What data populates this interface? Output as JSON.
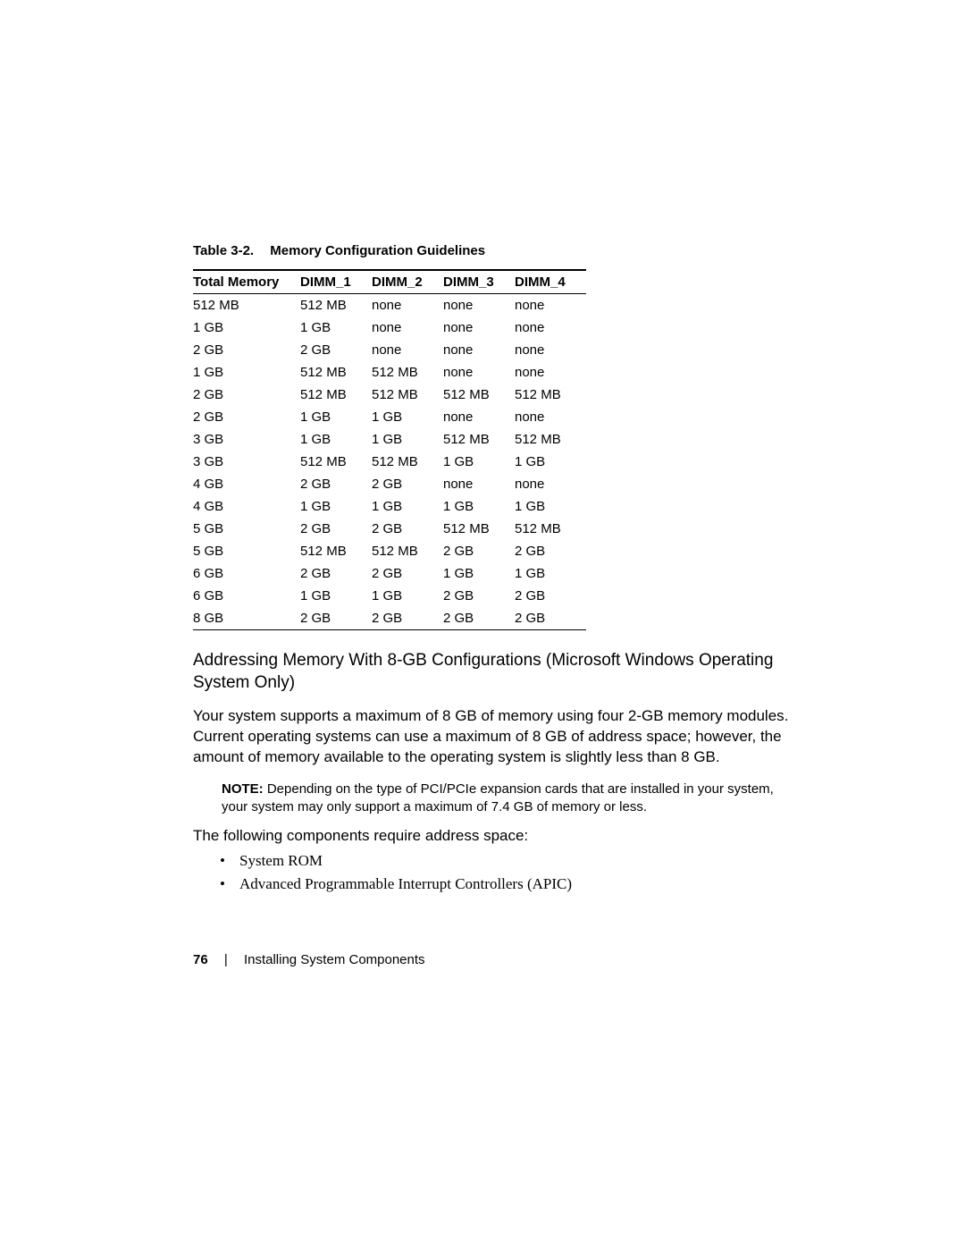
{
  "table": {
    "caption_label": "Table 3-2.",
    "caption_title": "Memory Configuration Guidelines",
    "columns": [
      "Total Memory",
      "DIMM_1",
      "DIMM_2",
      "DIMM_3",
      "DIMM_4"
    ],
    "rows": [
      [
        "512 MB",
        "512 MB",
        "none",
        "none",
        "none"
      ],
      [
        "1 GB",
        "1 GB",
        "none",
        "none",
        "none"
      ],
      [
        "2 GB",
        "2 GB",
        "none",
        "none",
        "none"
      ],
      [
        "1 GB",
        "512 MB",
        "512 MB",
        "none",
        "none"
      ],
      [
        "2 GB",
        "512 MB",
        "512 MB",
        "512 MB",
        "512 MB"
      ],
      [
        "2 GB",
        "1 GB",
        "1 GB",
        "none",
        "none"
      ],
      [
        "3 GB",
        "1 GB",
        "1 GB",
        "512 MB",
        "512 MB"
      ],
      [
        "3 GB",
        "512 MB",
        "512 MB",
        "1 GB",
        "1 GB"
      ],
      [
        "4 GB",
        "2 GB",
        "2 GB",
        "none",
        "none"
      ],
      [
        "4 GB",
        "1 GB",
        "1 GB",
        "1 GB",
        "1 GB"
      ],
      [
        "5 GB",
        "2 GB",
        "2 GB",
        "512 MB",
        "512 MB"
      ],
      [
        "5 GB",
        "512 MB",
        "512 MB",
        "2 GB",
        "2 GB"
      ],
      [
        "6 GB",
        "2 GB",
        "2 GB",
        "1 GB",
        "1 GB"
      ],
      [
        "6 GB",
        "1 GB",
        "1 GB",
        "2 GB",
        "2 GB"
      ],
      [
        "8 GB",
        "2 GB",
        "2 GB",
        "2 GB",
        "2 GB"
      ]
    ]
  },
  "subheading": "Addressing Memory With 8-GB Configurations (Microsoft Windows Operating System Only)",
  "paragraph1": "Your system supports a maximum of 8 GB of memory using four 2-GB memory modules. Current operating systems can use a maximum of 8 GB of address space; however, the amount of memory available to the operating system is slightly less than 8 GB.",
  "note_label": "NOTE:",
  "note_text": "Depending on the type of PCI/PCIe expansion cards that are installed in your system, your system may only support a maximum of 7.4 GB of memory or less.",
  "paragraph2": "The following components require address space:",
  "components": [
    "System ROM",
    "Advanced Programmable Interrupt Controllers (APIC)"
  ],
  "footer": {
    "page_number": "76",
    "separator": "|",
    "section": "Installing System Components"
  }
}
